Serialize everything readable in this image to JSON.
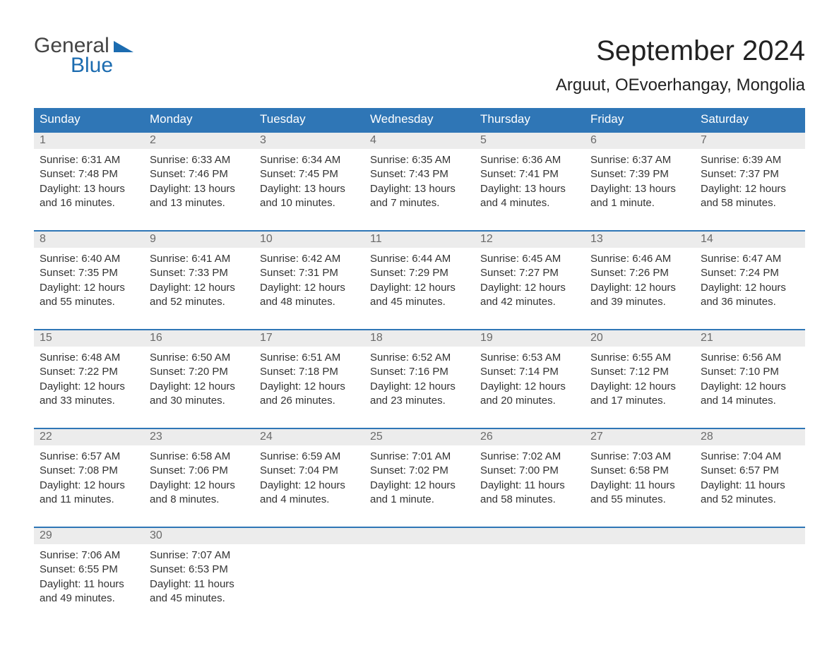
{
  "brand": {
    "text_general": "General",
    "text_blue": "Blue"
  },
  "title": "September 2024",
  "location": "Arguut, OEvoerhangay, Mongolia",
  "colors": {
    "header_bg": "#2f76b6",
    "header_text": "#ffffff",
    "daynum_bg": "#ececec",
    "daynum_text": "#6a6a6a",
    "body_text": "#333333",
    "rule": "#2f76b6",
    "brand_blue": "#1c6cb0",
    "page_bg": "#ffffff"
  },
  "typography": {
    "title_fontsize": 40,
    "location_fontsize": 24,
    "weekday_fontsize": 17,
    "cell_fontsize": 15
  },
  "weekdays": [
    "Sunday",
    "Monday",
    "Tuesday",
    "Wednesday",
    "Thursday",
    "Friday",
    "Saturday"
  ],
  "weeks": [
    [
      {
        "day": "1",
        "sunrise": "6:31 AM",
        "sunset": "7:48 PM",
        "daylight": "13 hours and 16 minutes."
      },
      {
        "day": "2",
        "sunrise": "6:33 AM",
        "sunset": "7:46 PM",
        "daylight": "13 hours and 13 minutes."
      },
      {
        "day": "3",
        "sunrise": "6:34 AM",
        "sunset": "7:45 PM",
        "daylight": "13 hours and 10 minutes."
      },
      {
        "day": "4",
        "sunrise": "6:35 AM",
        "sunset": "7:43 PM",
        "daylight": "13 hours and 7 minutes."
      },
      {
        "day": "5",
        "sunrise": "6:36 AM",
        "sunset": "7:41 PM",
        "daylight": "13 hours and 4 minutes."
      },
      {
        "day": "6",
        "sunrise": "6:37 AM",
        "sunset": "7:39 PM",
        "daylight": "13 hours and 1 minute."
      },
      {
        "day": "7",
        "sunrise": "6:39 AM",
        "sunset": "7:37 PM",
        "daylight": "12 hours and 58 minutes."
      }
    ],
    [
      {
        "day": "8",
        "sunrise": "6:40 AM",
        "sunset": "7:35 PM",
        "daylight": "12 hours and 55 minutes."
      },
      {
        "day": "9",
        "sunrise": "6:41 AM",
        "sunset": "7:33 PM",
        "daylight": "12 hours and 52 minutes."
      },
      {
        "day": "10",
        "sunrise": "6:42 AM",
        "sunset": "7:31 PM",
        "daylight": "12 hours and 48 minutes."
      },
      {
        "day": "11",
        "sunrise": "6:44 AM",
        "sunset": "7:29 PM",
        "daylight": "12 hours and 45 minutes."
      },
      {
        "day": "12",
        "sunrise": "6:45 AM",
        "sunset": "7:27 PM",
        "daylight": "12 hours and 42 minutes."
      },
      {
        "day": "13",
        "sunrise": "6:46 AM",
        "sunset": "7:26 PM",
        "daylight": "12 hours and 39 minutes."
      },
      {
        "day": "14",
        "sunrise": "6:47 AM",
        "sunset": "7:24 PM",
        "daylight": "12 hours and 36 minutes."
      }
    ],
    [
      {
        "day": "15",
        "sunrise": "6:48 AM",
        "sunset": "7:22 PM",
        "daylight": "12 hours and 33 minutes."
      },
      {
        "day": "16",
        "sunrise": "6:50 AM",
        "sunset": "7:20 PM",
        "daylight": "12 hours and 30 minutes."
      },
      {
        "day": "17",
        "sunrise": "6:51 AM",
        "sunset": "7:18 PM",
        "daylight": "12 hours and 26 minutes."
      },
      {
        "day": "18",
        "sunrise": "6:52 AM",
        "sunset": "7:16 PM",
        "daylight": "12 hours and 23 minutes."
      },
      {
        "day": "19",
        "sunrise": "6:53 AM",
        "sunset": "7:14 PM",
        "daylight": "12 hours and 20 minutes."
      },
      {
        "day": "20",
        "sunrise": "6:55 AM",
        "sunset": "7:12 PM",
        "daylight": "12 hours and 17 minutes."
      },
      {
        "day": "21",
        "sunrise": "6:56 AM",
        "sunset": "7:10 PM",
        "daylight": "12 hours and 14 minutes."
      }
    ],
    [
      {
        "day": "22",
        "sunrise": "6:57 AM",
        "sunset": "7:08 PM",
        "daylight": "12 hours and 11 minutes."
      },
      {
        "day": "23",
        "sunrise": "6:58 AM",
        "sunset": "7:06 PM",
        "daylight": "12 hours and 8 minutes."
      },
      {
        "day": "24",
        "sunrise": "6:59 AM",
        "sunset": "7:04 PM",
        "daylight": "12 hours and 4 minutes."
      },
      {
        "day": "25",
        "sunrise": "7:01 AM",
        "sunset": "7:02 PM",
        "daylight": "12 hours and 1 minute."
      },
      {
        "day": "26",
        "sunrise": "7:02 AM",
        "sunset": "7:00 PM",
        "daylight": "11 hours and 58 minutes."
      },
      {
        "day": "27",
        "sunrise": "7:03 AM",
        "sunset": "6:58 PM",
        "daylight": "11 hours and 55 minutes."
      },
      {
        "day": "28",
        "sunrise": "7:04 AM",
        "sunset": "6:57 PM",
        "daylight": "11 hours and 52 minutes."
      }
    ],
    [
      {
        "day": "29",
        "sunrise": "7:06 AM",
        "sunset": "6:55 PM",
        "daylight": "11 hours and 49 minutes."
      },
      {
        "day": "30",
        "sunrise": "7:07 AM",
        "sunset": "6:53 PM",
        "daylight": "11 hours and 45 minutes."
      },
      null,
      null,
      null,
      null,
      null
    ]
  ],
  "labels": {
    "sunrise_prefix": "Sunrise: ",
    "sunset_prefix": "Sunset: ",
    "daylight_prefix": "Daylight: "
  }
}
